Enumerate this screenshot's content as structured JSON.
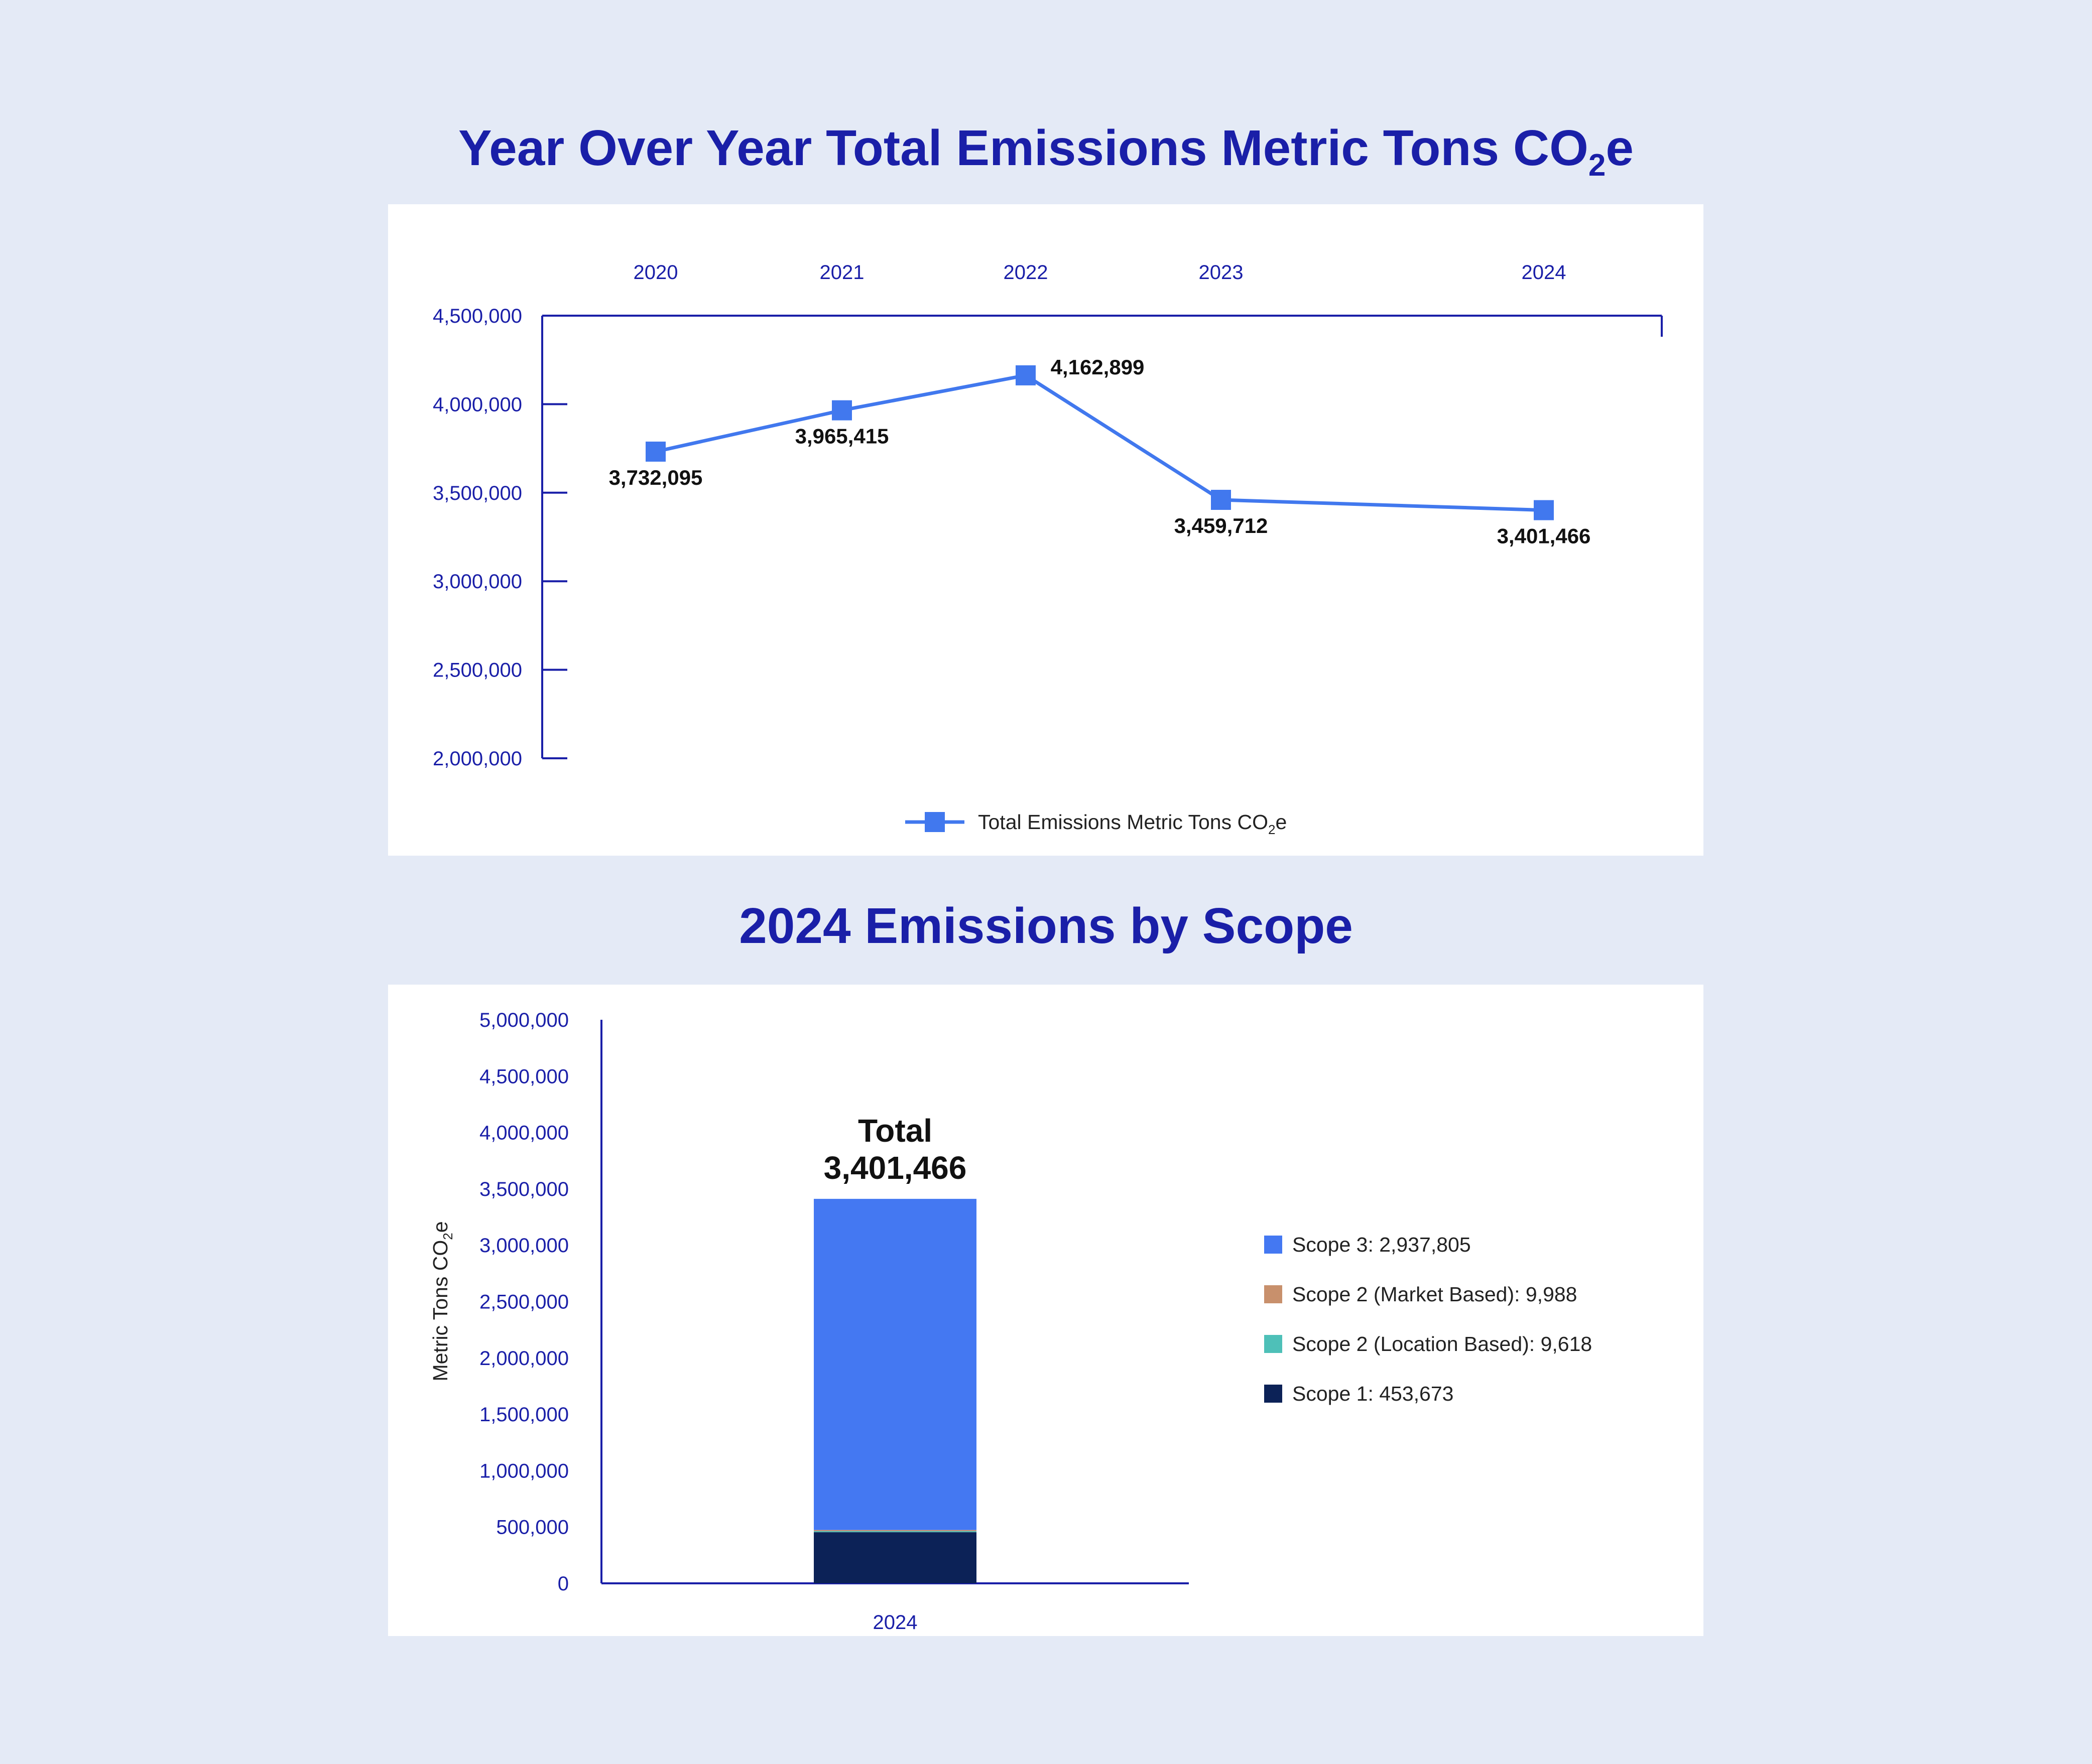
{
  "colors": {
    "title": "#1a1fa8",
    "axis": "#1a1fa8",
    "line": "#4178ee",
    "scope3": "#4478f2",
    "scope2_market": "#c8906c",
    "scope2_location": "#4ec0b8",
    "scope1": "#0c2257"
  },
  "chart_data": [
    {
      "type": "line",
      "title_main": "Year Over Year Total Emissions Metric Tons CO",
      "title_sub": "2",
      "title_end": "e",
      "x": [
        "2020",
        "2021",
        "2022",
        "2023",
        "2024"
      ],
      "y_ticks": [
        4500000,
        4000000,
        3500000,
        3000000,
        2500000,
        2000000
      ],
      "y_tick_labels": [
        "4,500,000",
        "4,000,000",
        "3,500,000",
        "3,000,000",
        "2,500,000",
        "2,000,000"
      ],
      "ylim": [
        2000000,
        4500000
      ],
      "series": [
        {
          "name": "Total Emissions Metric Tons CO2e",
          "values": [
            3732095,
            3965415,
            4162899,
            3459712,
            3401466
          ],
          "value_labels": [
            "3,732,095",
            "3,965,415",
            "4,162,899",
            "3,459,712",
            "3,401,466"
          ]
        }
      ],
      "legend_main": "Total Emissions Metric Tons CO",
      "legend_sub": "2",
      "legend_end": "e",
      "legend_position": "bottom-center"
    },
    {
      "type": "bar",
      "title": "2024 Emissions by Scope",
      "categories": [
        "2024"
      ],
      "ylabel_main": "Metric Tons CO",
      "ylabel_sub": "2",
      "ylabel_end": "e",
      "ylim": [
        0,
        5000000
      ],
      "y_ticks": [
        5000000,
        4500000,
        4000000,
        3500000,
        3000000,
        2500000,
        2000000,
        1500000,
        1000000,
        500000,
        0
      ],
      "y_tick_labels": [
        "5,000,000",
        "4,500,000",
        "4,000,000",
        "3,500,000",
        "3,000,000",
        "2,500,000",
        "2,000,000",
        "1,500,000",
        "1,000,000",
        "500,000",
        "0"
      ],
      "total_label": "Total",
      "total_value": "3,401,466",
      "stacked": true,
      "series": [
        {
          "name": "Scope 1",
          "values": [
            453673
          ],
          "legend": "Scope 1: 453,673"
        },
        {
          "name": "Scope 2 (Location Based)",
          "values": [
            9618
          ],
          "legend": "Scope 2 (Location Based): 9,618"
        },
        {
          "name": "Scope 2 (Market Based)",
          "values": [
            9988
          ],
          "legend": "Scope 2 (Market Based): 9,988"
        },
        {
          "name": "Scope 3",
          "values": [
            2937805
          ],
          "legend": "Scope 3: 2,937,805"
        }
      ],
      "legend_order": [
        "Scope 3",
        "Scope 2 (Market Based)",
        "Scope 2 (Location Based)",
        "Scope 1"
      ],
      "legend_position": "right"
    }
  ]
}
